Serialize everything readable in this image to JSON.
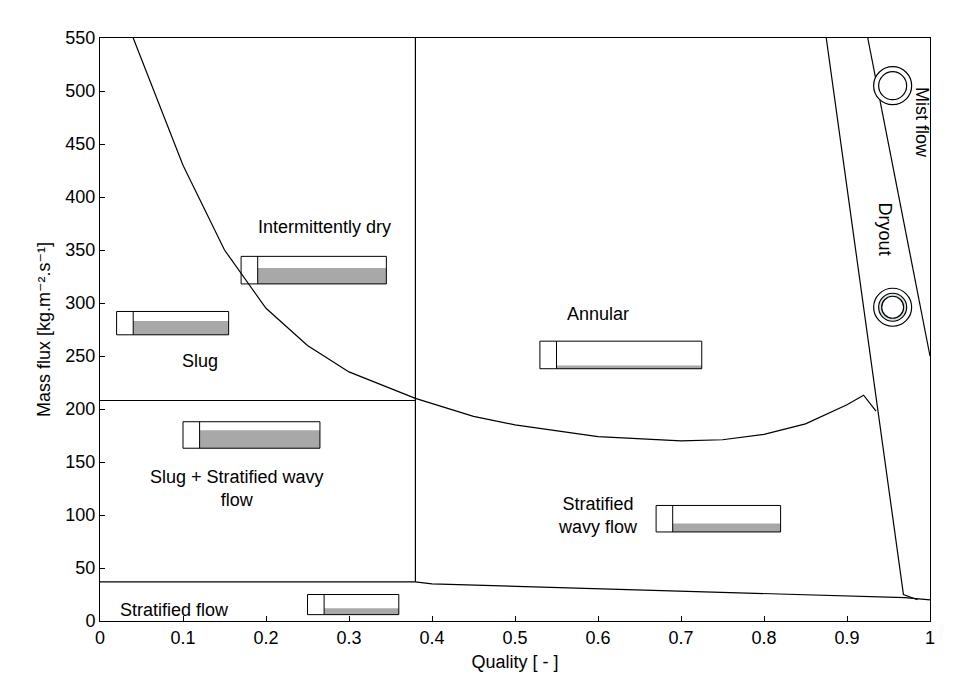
{
  "chart_data": {
    "type": "line",
    "xlabel": "Quality [ - ]",
    "ylabel": "Mass flux [kg.m⁻².s⁻¹]",
    "xlim": [
      0,
      1
    ],
    "xticks": [
      0,
      0.1,
      0.2,
      0.3,
      0.4,
      0.5,
      0.6,
      0.7,
      0.8,
      0.9,
      1
    ],
    "ylim": [
      0,
      550
    ],
    "yticks": [
      0,
      50,
      100,
      150,
      200,
      250,
      300,
      350,
      400,
      450,
      500,
      550
    ],
    "grid": false,
    "series": [
      {
        "color": "#000000",
        "x": [
          0,
          0.38,
          0.4,
          0.97,
          1
        ],
        "values": [
          37,
          37,
          35,
          22,
          20
        ]
      },
      {
        "color": "#000000",
        "x": [
          0.38,
          0.38
        ],
        "values": [
          37,
          550
        ]
      },
      {
        "color": "#000000",
        "x": [
          0,
          0.38
        ],
        "values": [
          208,
          208
        ]
      },
      {
        "color": "#000000",
        "x": [
          0.04,
          0.1,
          0.15,
          0.2,
          0.25,
          0.3,
          0.38,
          0.45,
          0.5,
          0.6,
          0.7,
          0.75,
          0.8,
          0.85,
          0.9,
          0.92,
          0.935
        ],
        "values": [
          550,
          430,
          350,
          295,
          260,
          235,
          210,
          193,
          185,
          174,
          170,
          171,
          176,
          186,
          204,
          213,
          198
        ]
      },
      {
        "color": "#000000",
        "x": [
          0.875,
          0.968,
          0.985
        ],
        "values": [
          550,
          25,
          20
        ]
      },
      {
        "color": "#000000",
        "x": [
          0.925,
          1
        ],
        "values": [
          550,
          250
        ]
      }
    ],
    "annotations": [
      {
        "text": [
          "Intermittently dry"
        ]
      },
      {
        "text": [
          "Slug"
        ]
      },
      {
        "text": [
          "Slug + Stratified wavy",
          "flow"
        ]
      },
      {
        "text": [
          "Stratified flow"
        ]
      },
      {
        "text": [
          "Annular"
        ]
      },
      {
        "text": [
          "Stratified",
          "wavy flow"
        ]
      },
      {
        "text": [
          "Dryout"
        ]
      },
      {
        "text": [
          "Mist flow"
        ]
      }
    ]
  }
}
